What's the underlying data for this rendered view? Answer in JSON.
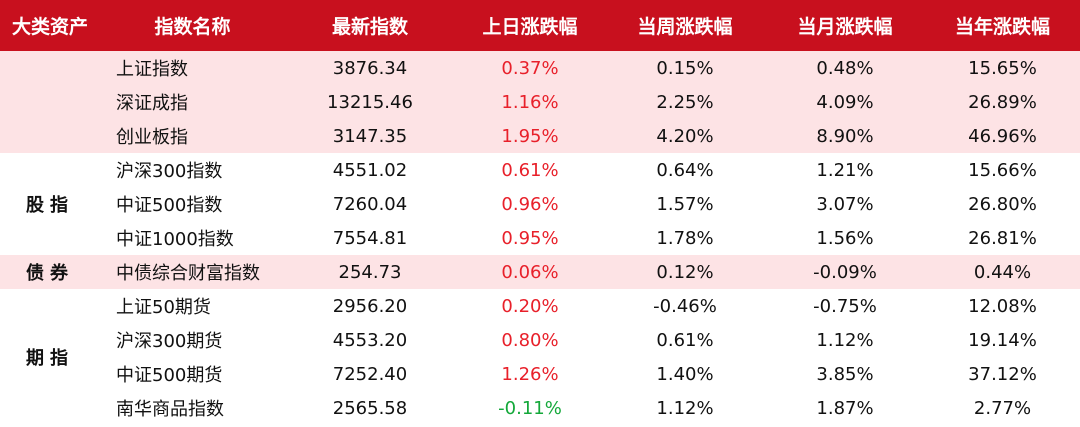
{
  "headers": [
    "大类资产",
    "指数名称",
    "最新指数",
    "上日涨跌幅",
    "当周涨跌幅",
    "当月涨跌幅",
    "当年涨跌幅"
  ],
  "categories": [
    {
      "label": "",
      "rows": [
        0,
        1,
        2
      ]
    },
    {
      "label": "股指",
      "rows": [
        3,
        4,
        5
      ]
    },
    {
      "label": "债券",
      "rows": [
        6
      ]
    },
    {
      "label": "期指",
      "rows": [
        7,
        8,
        9,
        10
      ]
    }
  ],
  "rows": [
    {
      "name": "上证指数",
      "latest": "3876.34",
      "day": "0.37%",
      "week": "0.15%",
      "month": "0.48%",
      "year": "15.65%"
    },
    {
      "name": "深证成指",
      "latest": "13215.46",
      "day": "1.16%",
      "week": "2.25%",
      "month": "4.09%",
      "year": "26.89%"
    },
    {
      "name": "创业板指",
      "latest": "3147.35",
      "day": "1.95%",
      "week": "4.20%",
      "month": "8.90%",
      "year": "46.96%"
    },
    {
      "name": "沪深300指数",
      "latest": "4551.02",
      "day": "0.61%",
      "week": "0.64%",
      "month": "1.21%",
      "year": "15.66%"
    },
    {
      "name": "中证500指数",
      "latest": "7260.04",
      "day": "0.96%",
      "week": "1.57%",
      "month": "3.07%",
      "year": "26.80%"
    },
    {
      "name": "中证1000指数",
      "latest": "7554.81",
      "day": "0.95%",
      "week": "1.78%",
      "month": "1.56%",
      "year": "26.81%"
    },
    {
      "name": "中债综合财富指数",
      "latest": "254.73",
      "day": "0.06%",
      "week": "0.12%",
      "month": "-0.09%",
      "year": "0.44%"
    },
    {
      "name": "上证50期货",
      "latest": "2956.20",
      "day": "0.20%",
      "week": "-0.46%",
      "month": "-0.75%",
      "year": "12.08%"
    },
    {
      "name": "沪深300期货",
      "latest": "4553.20",
      "day": "0.80%",
      "week": "0.61%",
      "month": "1.12%",
      "year": "19.14%"
    },
    {
      "name": "中证500期货",
      "latest": "7252.40",
      "day": "1.26%",
      "week": "1.40%",
      "month": "3.85%",
      "year": "37.12%"
    },
    {
      "name": "南华商品指数",
      "latest": "2565.58",
      "day": "-0.11%",
      "week": "1.12%",
      "month": "1.87%",
      "year": "2.77%"
    }
  ],
  "colors": {
    "header_bg": "#c8101e",
    "band_pink": "#fde3e5",
    "up": "#e8202a",
    "down": "#14a83a"
  }
}
